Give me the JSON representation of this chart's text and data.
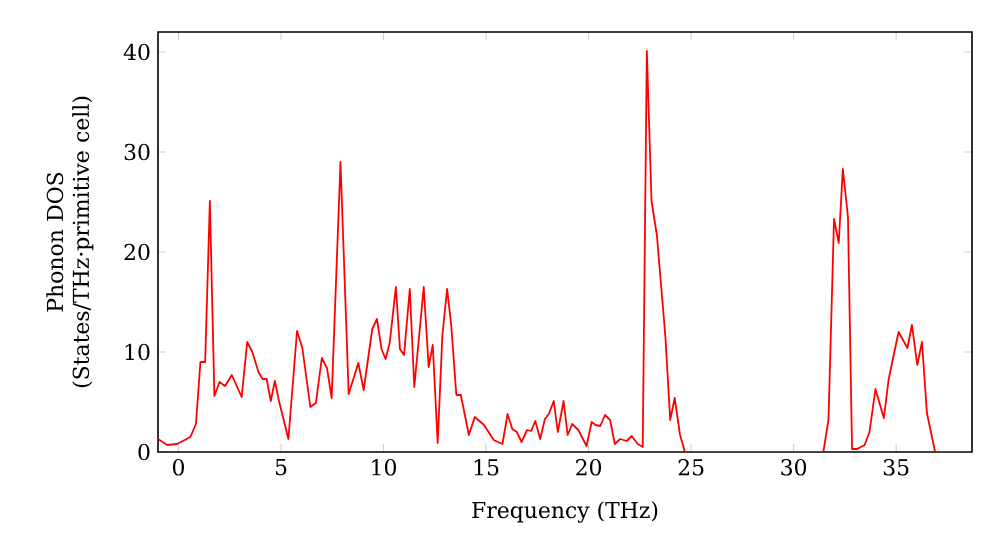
{
  "chart_data": {
    "type": "line",
    "xlabel": "Frequency (THz)",
    "ylabel": "Phonon DOS (States/THz·primitive cell)",
    "xlim": [
      -1,
      38.7
    ],
    "ylim": [
      0,
      42
    ],
    "xticks": [
      0,
      5,
      10,
      15,
      20,
      25,
      30,
      35
    ],
    "yticks": [
      0,
      10,
      20,
      30,
      40
    ],
    "grid": false,
    "marker": "none",
    "line_style": "solid",
    "x": [
      -1,
      -0.55,
      -0.07,
      0.58,
      0.85,
      1.07,
      1.3,
      1.53,
      1.75,
      2.0,
      2.27,
      2.6,
      3.08,
      3.35,
      3.6,
      3.9,
      4.1,
      4.3,
      4.5,
      4.7,
      4.9,
      5.36,
      5.78,
      6.04,
      6.43,
      6.7,
      6.99,
      7.24,
      7.47,
      7.9,
      8.3,
      8.77,
      9.03,
      9.45,
      9.68,
      9.9,
      10.1,
      10.3,
      10.6,
      10.8,
      11.0,
      11.28,
      11.5,
      11.96,
      12.2,
      12.4,
      12.64,
      12.87,
      13.1,
      13.3,
      13.55,
      13.77,
      14.16,
      14.45,
      14.9,
      15.37,
      15.8,
      16.05,
      16.28,
      16.5,
      16.73,
      17.0,
      17.2,
      17.4,
      17.64,
      17.87,
      18.06,
      18.3,
      18.5,
      18.78,
      18.98,
      19.2,
      19.5,
      19.9,
      20.15,
      20.34,
      20.57,
      20.8,
      21.05,
      21.28,
      21.54,
      21.86,
      22.1,
      22.4,
      22.64,
      22.84,
      23.07,
      23.33,
      23.6,
      23.75,
      23.98,
      24.2,
      24.46,
      24.7,
      31.45,
      31.7,
      31.97,
      32.2,
      32.4,
      32.65,
      32.85,
      33.1,
      33.46,
      33.7,
      33.99,
      34.4,
      34.63,
      34.86,
      35.12,
      35.55,
      35.77,
      36.03,
      36.26,
      36.5,
      36.9,
      38.6
    ],
    "series": [
      {
        "color": "#ff0000",
        "values": [
          1.3,
          0.7,
          0.8,
          1.5,
          2.8,
          9.0,
          9.0,
          25.1,
          5.6,
          7.0,
          6.6,
          7.7,
          5.5,
          11.0,
          10.0,
          8.0,
          7.3,
          7.3,
          5.1,
          7.1,
          5.1,
          1.3,
          12.1,
          10.4,
          4.5,
          4.9,
          9.4,
          8.4,
          5.4,
          29.0,
          5.8,
          8.9,
          6.2,
          12.3,
          13.3,
          10.3,
          9.3,
          10.9,
          16.5,
          10.3,
          9.7,
          16.3,
          6.5,
          16.5,
          8.5,
          10.7,
          0.9,
          11.7,
          16.3,
          12.7,
          5.7,
          5.7,
          1.7,
          3.5,
          2.7,
          1.2,
          0.8,
          3.8,
          2.3,
          2.0,
          1.0,
          2.2,
          2.1,
          3.1,
          1.3,
          3.3,
          3.8,
          5.1,
          2.0,
          5.1,
          1.7,
          2.8,
          2.2,
          0.6,
          3.0,
          2.7,
          2.6,
          3.7,
          3.2,
          0.8,
          1.3,
          1.1,
          1.6,
          0.8,
          0.5,
          40.1,
          25.1,
          21.7,
          15.1,
          11.4,
          3.2,
          5.4,
          1.7,
          0,
          0,
          3.2,
          23.3,
          20.9,
          28.3,
          23.5,
          0.3,
          0.3,
          0.7,
          2.0,
          6.3,
          3.4,
          7.2,
          9.5,
          12.0,
          10.4,
          12.7,
          8.7,
          11.0,
          3.9,
          0,
          0
        ]
      }
    ]
  }
}
